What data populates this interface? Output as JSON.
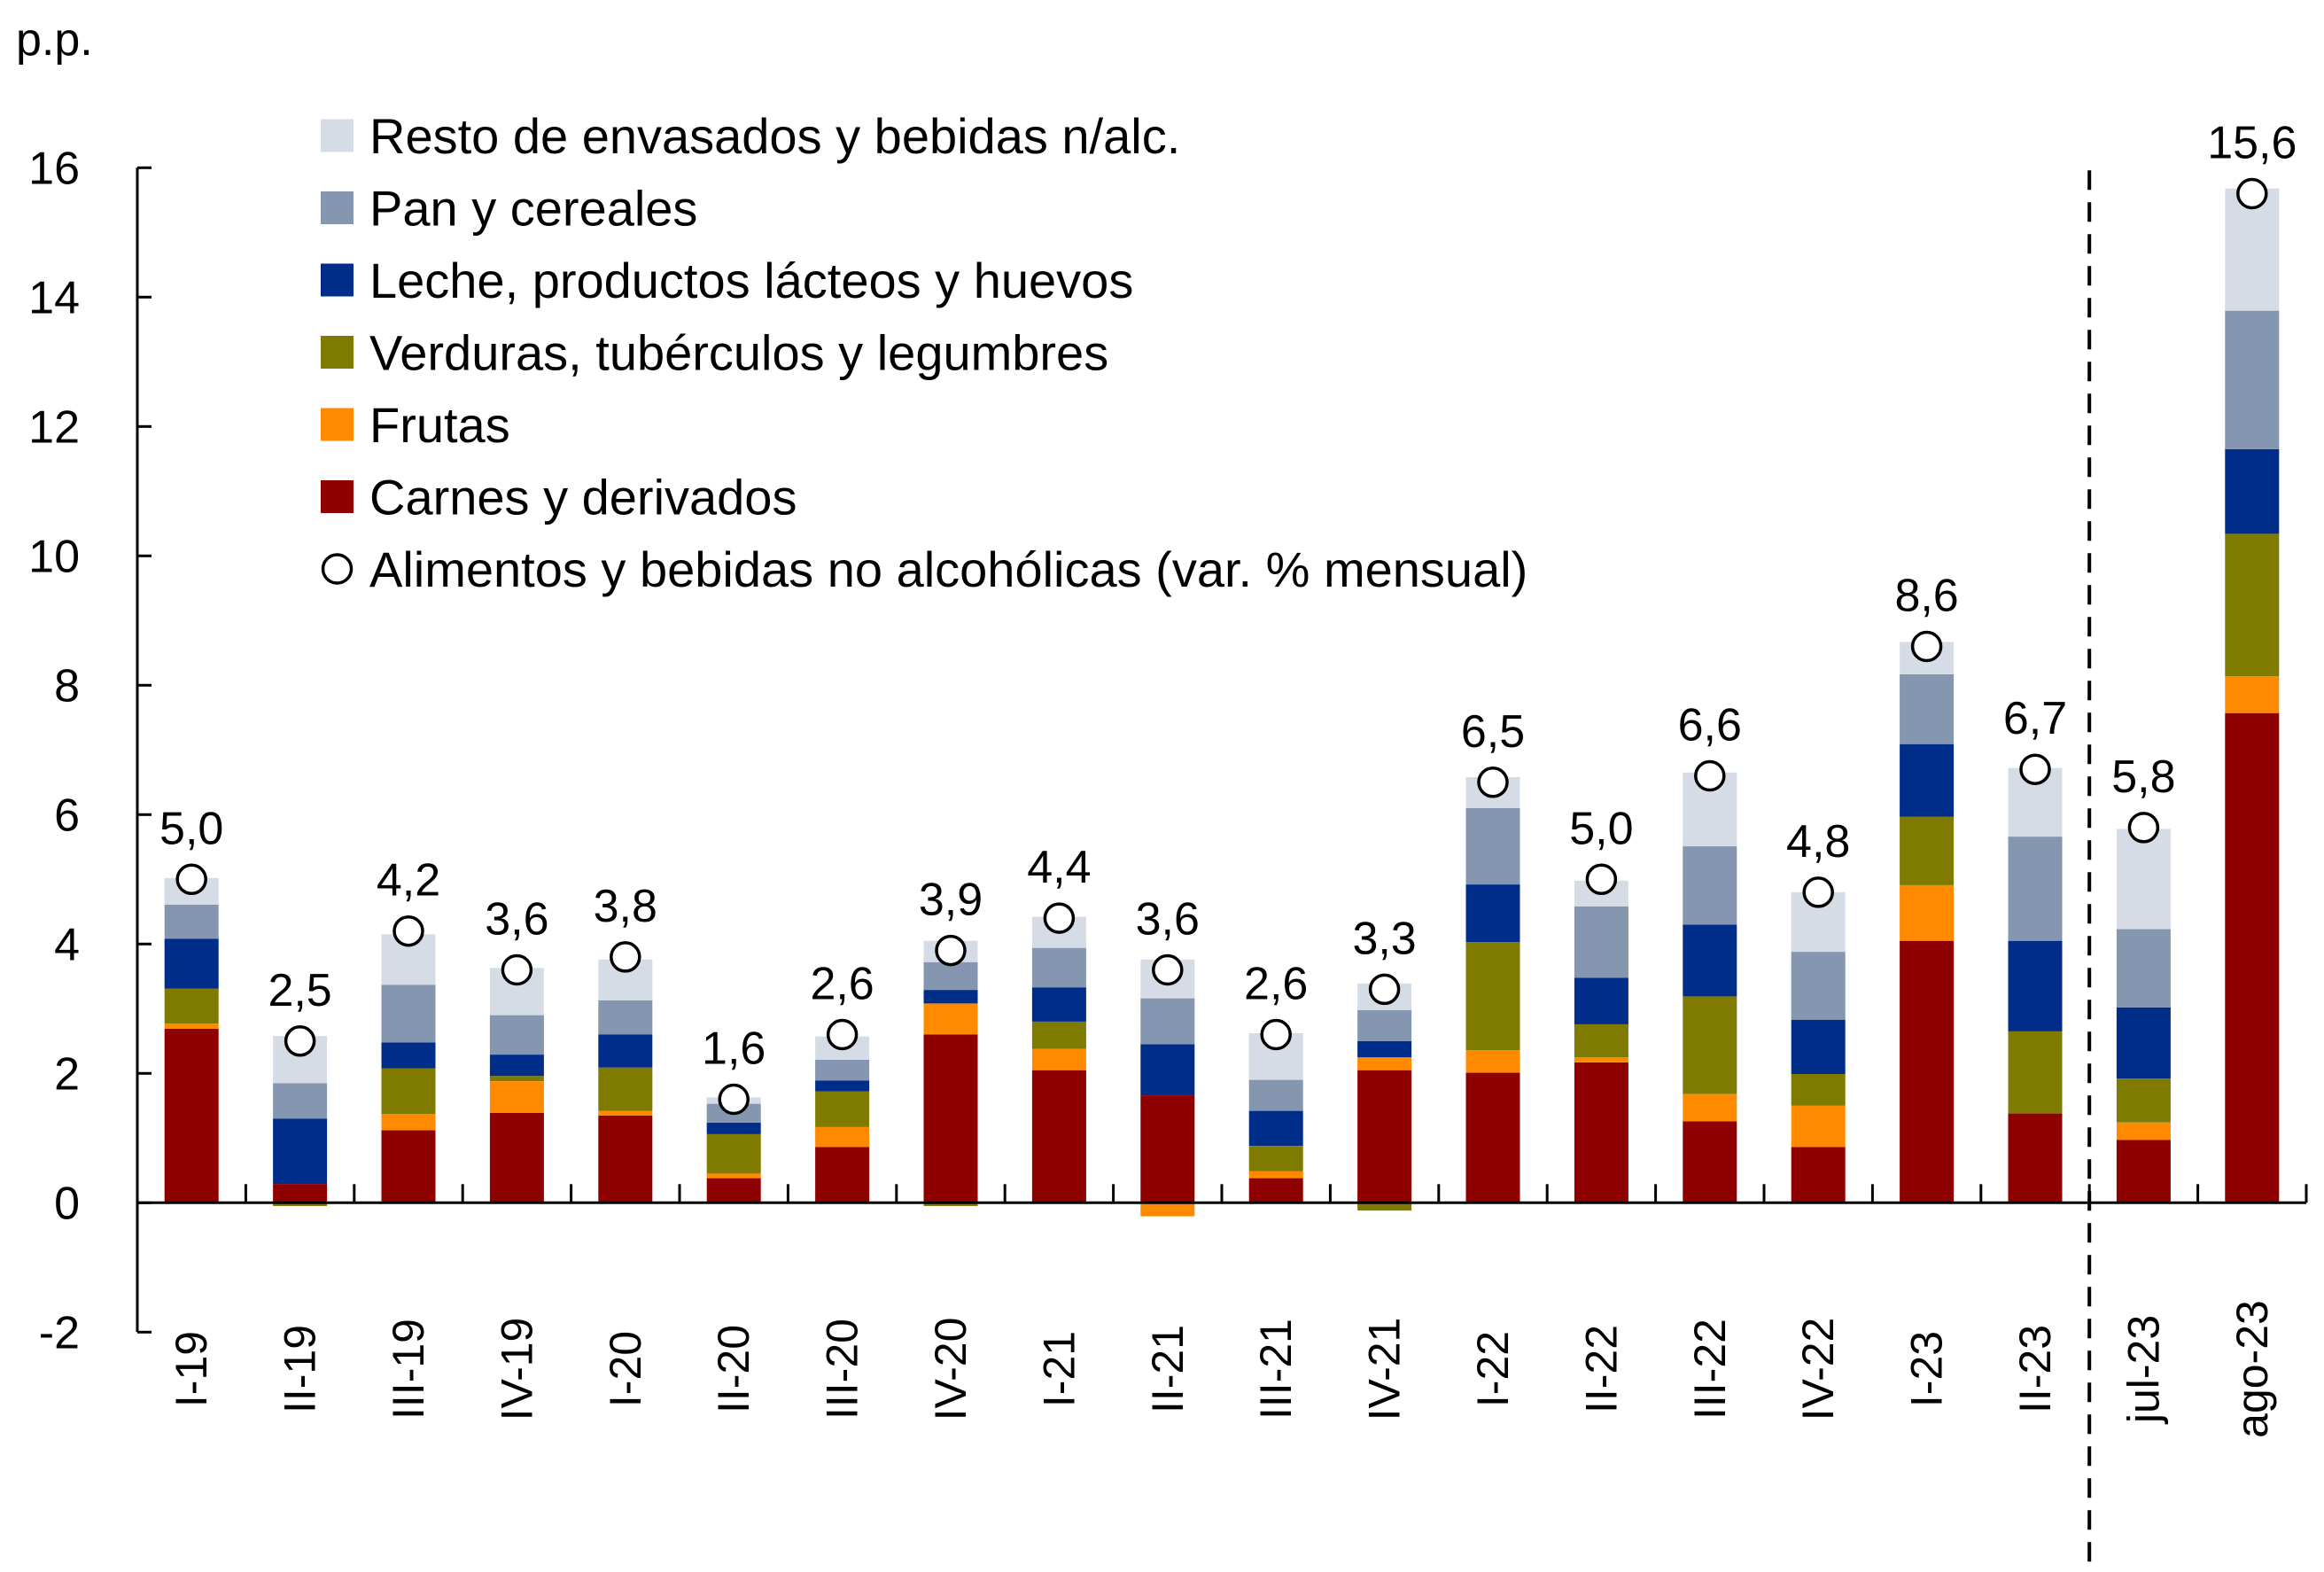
{
  "chart_data": {
    "type": "bar",
    "stacked": true,
    "title": "",
    "ylabel": "p.p.",
    "xlabel": "",
    "ylim": [
      -2,
      16
    ],
    "yticks": [
      -2,
      0,
      2,
      4,
      6,
      8,
      10,
      12,
      14,
      16
    ],
    "ytick_labels": [
      "-2",
      "0",
      "2",
      "4",
      "6",
      "8",
      "10",
      "12",
      "14",
      "16"
    ],
    "grid": false,
    "legend_position": "top-left",
    "separator_after_index": 17,
    "categories": [
      "I-19",
      "II-19",
      "III-19",
      "IV-19",
      "I-20",
      "II-20",
      "III-20",
      "IV-20",
      "I-21",
      "II-21",
      "III-21",
      "IV-21",
      "I-22",
      "II-22",
      "III-22",
      "IV-22",
      "I-23",
      "II-23",
      "jul-23",
      "ago-23"
    ],
    "series": [
      {
        "name": "Carnes y derivados",
        "color": "#8F0000",
        "values": [
          2.69,
          0.29,
          1.12,
          1.39,
          1.35,
          0.38,
          0.86,
          2.6,
          2.05,
          1.66,
          0.38,
          2.05,
          2.01,
          2.17,
          1.26,
          0.86,
          4.05,
          1.38,
          0.97,
          7.57
        ]
      },
      {
        "name": "Frutas",
        "color": "#FF8A00",
        "values": [
          0.08,
          0.0,
          0.25,
          0.49,
          0.07,
          0.07,
          0.31,
          0.48,
          0.33,
          -0.21,
          0.11,
          0.2,
          0.35,
          0.08,
          0.42,
          0.64,
          0.86,
          0.0,
          0.27,
          0.57
        ]
      },
      {
        "name": "Verduras, tubérculos y legumbres",
        "color": "#7F7A00",
        "values": [
          0.54,
          -0.05,
          0.71,
          0.08,
          0.67,
          0.61,
          0.55,
          -0.05,
          0.42,
          0.0,
          0.39,
          -0.12,
          1.67,
          0.51,
          1.51,
          0.49,
          1.06,
          1.27,
          0.68,
          2.2
        ]
      },
      {
        "name": "Leche, productos lácteos y huevos",
        "color": "#002D8A",
        "values": [
          0.77,
          1.01,
          0.4,
          0.33,
          0.51,
          0.18,
          0.17,
          0.21,
          0.53,
          0.79,
          0.54,
          0.25,
          0.89,
          0.72,
          1.11,
          0.84,
          1.12,
          1.4,
          1.1,
          1.31
        ]
      },
      {
        "name": "Pan y cereales",
        "color": "#8496B0",
        "values": [
          0.53,
          0.55,
          0.89,
          0.61,
          0.53,
          0.29,
          0.32,
          0.43,
          0.61,
          0.71,
          0.48,
          0.48,
          1.18,
          1.1,
          1.21,
          1.05,
          1.08,
          1.61,
          1.21,
          2.14
        ]
      },
      {
        "name": "Resto de envasados y bebidas n/alc.",
        "color": "#D6DCE6",
        "values": [
          0.41,
          0.73,
          0.78,
          0.73,
          0.63,
          0.1,
          0.36,
          0.33,
          0.48,
          0.6,
          0.72,
          0.41,
          0.48,
          0.4,
          1.14,
          0.92,
          0.5,
          1.06,
          1.55,
          1.89
        ]
      }
    ],
    "total_series": {
      "name": "Alimentos y bebidas no alcohólicas (var. % mensual)",
      "marker": "open-circle",
      "values": [
        5.0,
        2.5,
        4.2,
        3.6,
        3.8,
        1.6,
        2.6,
        3.9,
        4.4,
        3.6,
        2.6,
        3.3,
        6.5,
        5.0,
        6.6,
        4.8,
        8.6,
        6.7,
        5.8,
        15.6
      ],
      "labels": [
        "5,0",
        "2,5",
        "4,2",
        "3,6",
        "3,8",
        "1,6",
        "2,6",
        "3,9",
        "4,4",
        "3,6",
        "2,6",
        "3,3",
        "6,5",
        "5,0",
        "6,6",
        "4,8",
        "8,6",
        "6,7",
        "5,8",
        "15,6"
      ]
    },
    "legend": [
      {
        "label": "Resto de envasados y bebidas n/alc.",
        "color": "#D6DCE6",
        "marker": "square"
      },
      {
        "label": "Pan y cereales",
        "color": "#8496B0",
        "marker": "square"
      },
      {
        "label": "Leche, productos lácteos y huevos",
        "color": "#002D8A",
        "marker": "square"
      },
      {
        "label": "Verduras, tubérculos y legumbres",
        "color": "#7F7A00",
        "marker": "square"
      },
      {
        "label": "Frutas",
        "color": "#FF8A00",
        "marker": "square"
      },
      {
        "label": "Carnes y derivados",
        "color": "#8F0000",
        "marker": "square"
      },
      {
        "label": "Alimentos y bebidas no alcohólicas (var. % mensual)",
        "color": "#000000",
        "marker": "open-circle"
      }
    ]
  }
}
